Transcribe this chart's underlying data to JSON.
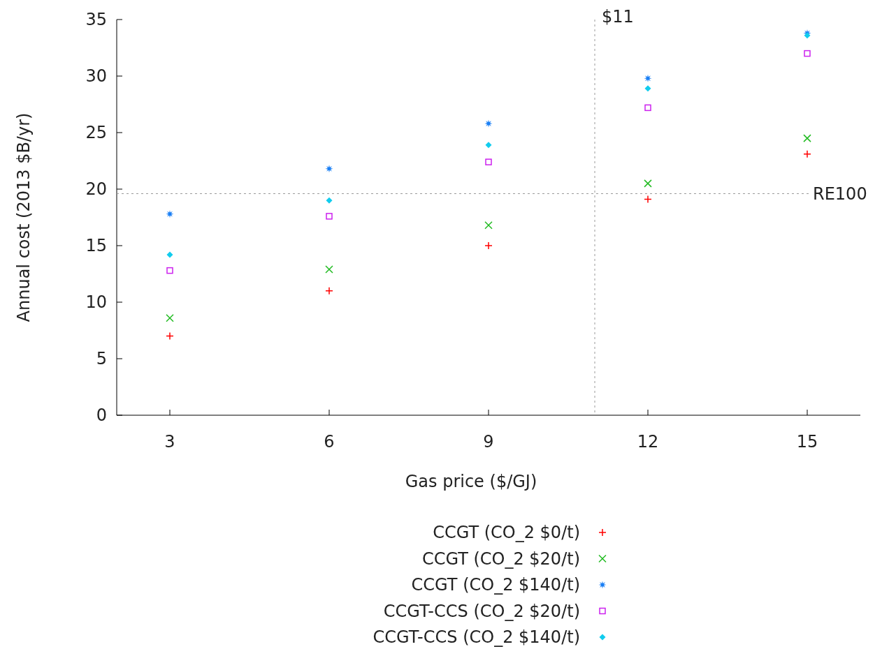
{
  "chart_data": {
    "type": "scatter",
    "xlabel": "Gas price ($/GJ)",
    "ylabel": "Annual cost (2013 $B/yr)",
    "x": [
      3,
      6,
      9,
      12,
      15
    ],
    "series": [
      {
        "name": "CCGT (CO_2 $0/t)",
        "color": "#ff0000",
        "marker": "cross",
        "values": [
          7.0,
          11.0,
          15.0,
          19.1,
          23.1
        ]
      },
      {
        "name": "CCGT (CO_2 $20/t)",
        "color": "#22bb22",
        "marker": "x",
        "values": [
          8.6,
          12.9,
          16.8,
          20.5,
          24.5
        ]
      },
      {
        "name": "CCGT (CO_2 $140/t)",
        "color": "#1a7ff5",
        "marker": "star",
        "values": [
          17.8,
          21.8,
          25.8,
          29.8,
          33.8
        ]
      },
      {
        "name": "CCGT-CCS (CO_2 $20/t)",
        "color": "#cc22ee",
        "marker": "square",
        "values": [
          12.8,
          17.6,
          22.4,
          27.2,
          32.0
        ]
      },
      {
        "name": "CCGT-CCS (CO_2 $140/t)",
        "color": "#11ccee",
        "marker": "diamond",
        "values": [
          14.2,
          19.0,
          23.9,
          28.9,
          33.6
        ]
      }
    ],
    "xlim": [
      2,
      16
    ],
    "xticks": [
      3,
      6,
      9,
      12,
      15
    ],
    "ylim": [
      0,
      35
    ],
    "yticks": [
      0,
      5,
      10,
      15,
      20,
      25,
      30,
      35
    ],
    "ref_lines": [
      {
        "axis": "x",
        "value": 11,
        "label": "$11"
      },
      {
        "axis": "y",
        "value": 19.6,
        "label": "RE100"
      }
    ],
    "legend": "bottom"
  }
}
